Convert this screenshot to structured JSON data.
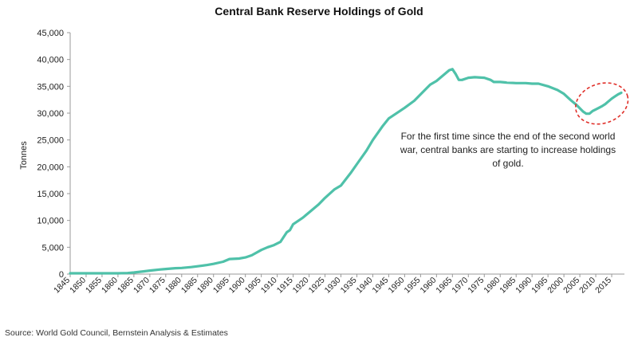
{
  "chart_data": {
    "type": "line",
    "title": "Central Bank Reserve Holdings of Gold",
    "ylabel": "Tonnes",
    "xlabel": "",
    "ylim": [
      0,
      45000
    ],
    "xlim": [
      1845,
      2019
    ],
    "y_ticks": [
      "0",
      "5,000",
      "10,000",
      "15,000",
      "20,000",
      "25,000",
      "30,000",
      "35,000",
      "40,000",
      "45,000"
    ],
    "x_ticks": [
      "1845",
      "1850",
      "1855",
      "1860",
      "1865",
      "1870",
      "1875",
      "1880",
      "1885",
      "1890",
      "1895",
      "1900",
      "1905",
      "1910",
      "1915",
      "1920",
      "1925",
      "1930",
      "1935",
      "1940",
      "1945",
      "1950",
      "1955",
      "1960",
      "1965",
      "1970",
      "1975",
      "1980",
      "1985",
      "1990",
      "1995",
      "2000",
      "2005",
      "2010",
      "2015"
    ],
    "grid": false,
    "series": [
      {
        "color": "#4fc1a9",
        "x": [
          1845,
          1850,
          1855,
          1860,
          1863,
          1865,
          1868,
          1870,
          1873,
          1875,
          1878,
          1880,
          1883,
          1885,
          1888,
          1890,
          1893,
          1895,
          1898,
          1900,
          1902,
          1905,
          1907,
          1909,
          1911,
          1913,
          1914,
          1915,
          1918,
          1920,
          1923,
          1925,
          1928,
          1930,
          1933,
          1935,
          1938,
          1940,
          1943,
          1945,
          1948,
          1950,
          1953,
          1955,
          1958,
          1960,
          1962,
          1964,
          1965,
          1966,
          1967,
          1968,
          1970,
          1972,
          1975,
          1977,
          1978,
          1980,
          1982,
          1985,
          1988,
          1990,
          1992,
          1995,
          1998,
          2000,
          2002,
          2004,
          2006,
          2007,
          2008,
          2009,
          2010,
          2011,
          2012,
          2013,
          2014,
          2015,
          2016,
          2017,
          2018
        ],
        "values": [
          150,
          150,
          150,
          150,
          200,
          300,
          500,
          650,
          850,
          950,
          1100,
          1150,
          1300,
          1450,
          1700,
          1900,
          2300,
          2800,
          2900,
          3100,
          3500,
          4500,
          5000,
          5400,
          6000,
          7800,
          8200,
          9300,
          10500,
          11500,
          13000,
          14200,
          15800,
          16500,
          18800,
          20500,
          23000,
          25000,
          27500,
          29000,
          30200,
          31000,
          32300,
          33500,
          35300,
          36000,
          37000,
          38000,
          38200,
          37300,
          36200,
          36200,
          36600,
          36700,
          36600,
          36200,
          35800,
          35800,
          35700,
          35600,
          35600,
          35500,
          35500,
          35000,
          34300,
          33600,
          32500,
          31500,
          30300,
          29900,
          29900,
          30400,
          30700,
          31000,
          31300,
          31700,
          32200,
          32700,
          33100,
          33500,
          33800
        ]
      }
    ],
    "annotations": [
      {
        "text": "For the first time since the end of the second world war, central banks are starting to increase holdings of gold.",
        "highlight": "dashed red ellipse around 2008-2018"
      }
    ]
  },
  "source": "Source: World Gold Council, Bernstein Analysis & Estimates"
}
